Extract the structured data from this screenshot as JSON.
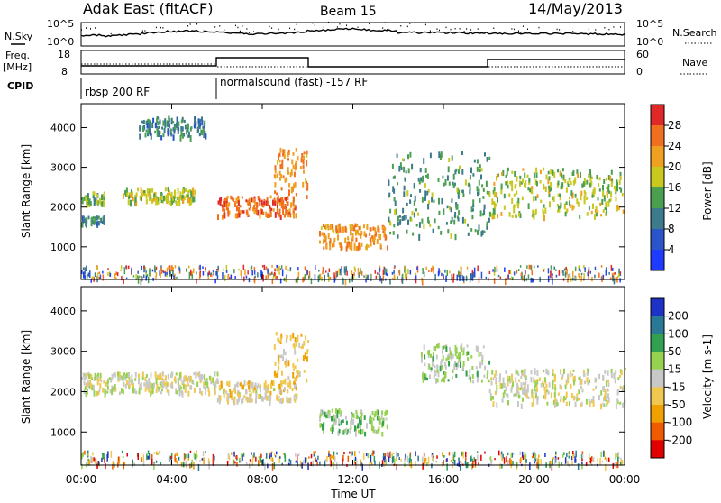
{
  "header": {
    "site": "Adak East (fitACF)",
    "beam": "Beam 15",
    "date": "14/May/2013"
  },
  "top_panels": {
    "nsky_label": "N.Sky",
    "nsky_ticks": [
      "10^5",
      "10^0"
    ],
    "nsearch_label": "N.Search",
    "freq_label_1": "Freq.",
    "freq_label_2": "[MHz]",
    "freq_ticks": [
      "18",
      "8"
    ],
    "nave_label": "Nave",
    "nave_ticks": [
      "60",
      "0"
    ],
    "cpid_label": "CPID",
    "cpid_segments": [
      {
        "label": "rbsp 200 RF",
        "start_hour": 0,
        "end_hour": 6
      },
      {
        "label": "normalsound (fast) -157 RF",
        "start_hour": 6,
        "end_hour": 24
      }
    ]
  },
  "colors": {
    "power": [
      "#1e3cff",
      "#2a55c8",
      "#3c7a8c",
      "#4aa050",
      "#c8c81e",
      "#f0a020",
      "#f07020",
      "#e02828"
    ],
    "velocity": [
      "#e00000",
      "#f05a00",
      "#f0a000",
      "#f0c850",
      "#c8c8c8",
      "#96d250",
      "#32a050",
      "#287896",
      "#1e32c8"
    ]
  },
  "chart_data": [
    {
      "type": "heatmap",
      "title": "Power",
      "ylabel": "Slant Range [km]",
      "xlabel": "Time UT",
      "x_ticks": [
        "00:00",
        "04:00",
        "08:00",
        "12:00",
        "16:00",
        "20:00",
        "00:00"
      ],
      "x_range_hours": [
        0,
        24
      ],
      "y_ticks": [
        1000,
        2000,
        3000,
        4000
      ],
      "ylim": [
        180,
        4600
      ],
      "colorbar": {
        "label": "Power [dB]",
        "ticks": [
          "28",
          "24",
          "20",
          "16",
          "12",
          "8",
          "4"
        ],
        "range": [
          0,
          30
        ]
      },
      "features": [
        {
          "t0": 0.0,
          "t1": 1.0,
          "r0": 2100,
          "r1": 2400,
          "value": 14
        },
        {
          "t0": 0.0,
          "t1": 1.0,
          "r0": 1600,
          "r1": 1800,
          "value": 10
        },
        {
          "t0": 1.8,
          "t1": 5.0,
          "r0": 2150,
          "r1": 2500,
          "value": 16
        },
        {
          "t0": 2.5,
          "t1": 5.5,
          "r0": 3800,
          "r1": 4300,
          "value": 10
        },
        {
          "t0": 6.0,
          "t1": 9.5,
          "r0": 1800,
          "r1": 2300,
          "value": 24
        },
        {
          "t0": 8.5,
          "t1": 10.0,
          "r0": 2300,
          "r1": 3500,
          "value": 22
        },
        {
          "t0": 10.5,
          "t1": 13.5,
          "r0": 1000,
          "r1": 1600,
          "value": 22
        },
        {
          "t0": 13.5,
          "t1": 18.0,
          "r0": 1300,
          "r1": 3400,
          "value": 12
        },
        {
          "t0": 18.0,
          "t1": 24.0,
          "r0": 1800,
          "r1": 3000,
          "value": 16
        }
      ]
    },
    {
      "type": "heatmap",
      "title": "Velocity",
      "ylabel": "Slant Range [km]",
      "xlabel": "Time UT",
      "x_ticks": [
        "00:00",
        "04:00",
        "08:00",
        "12:00",
        "16:00",
        "20:00",
        "00:00"
      ],
      "x_range_hours": [
        0,
        24
      ],
      "y_ticks": [
        1000,
        2000,
        3000,
        4000
      ],
      "ylim": [
        180,
        4600
      ],
      "colorbar": {
        "label": "Velocity [m s-1]",
        "ticks": [
          "200",
          "100",
          "50",
          "15",
          "-15",
          "-50",
          "-100",
          "-200"
        ],
        "range": [
          -250,
          250
        ]
      },
      "features": [
        {
          "t0": 0.0,
          "t1": 6.0,
          "r0": 2000,
          "r1": 2500,
          "value": 0
        },
        {
          "t0": 6.0,
          "t1": 9.5,
          "r0": 1800,
          "r1": 2300,
          "value": -30
        },
        {
          "t0": 8.5,
          "t1": 10.0,
          "r0": 2300,
          "r1": 3500,
          "value": -60
        },
        {
          "t0": 10.5,
          "t1": 13.5,
          "r0": 1000,
          "r1": 1600,
          "value": 60
        },
        {
          "t0": 15.0,
          "t1": 18.0,
          "r0": 2300,
          "r1": 3200,
          "value": 40
        },
        {
          "t0": 18.0,
          "t1": 24.0,
          "r0": 1700,
          "r1": 2600,
          "value": 0
        }
      ]
    }
  ]
}
